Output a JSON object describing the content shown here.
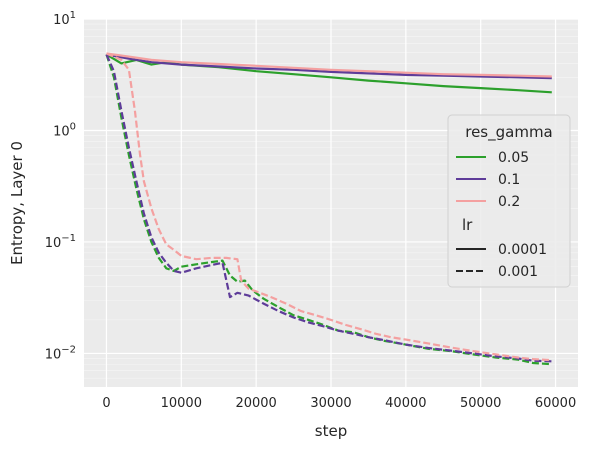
{
  "chart_data": {
    "type": "line",
    "xlabel": "step",
    "ylabel": "Entropy, Layer 0",
    "xlim": [
      -3000,
      63000
    ],
    "ylim": [
      0.005,
      10
    ],
    "y_scale": "log",
    "grid": true,
    "x_ticks": [
      0,
      10000,
      20000,
      30000,
      40000,
      50000,
      60000
    ],
    "x_tick_labels": [
      "0",
      "10000",
      "20000",
      "30000",
      "40000",
      "50000",
      "60000"
    ],
    "y_ticks": [
      0.01,
      0.1,
      1,
      10
    ],
    "y_tick_labels": [
      {
        "base": "10",
        "exp": "−2"
      },
      {
        "base": "10",
        "exp": "−1"
      },
      {
        "base": "10",
        "exp": "0"
      },
      {
        "base": "10",
        "exp": "1"
      }
    ],
    "legend": {
      "position": "center-right",
      "hue_title": "res_gamma",
      "hue_entries": [
        {
          "label": "0.05",
          "color": "#2ca02c"
        },
        {
          "label": "0.1",
          "color": "#5e3c99"
        },
        {
          "label": "0.2",
          "color": "#f4a0a0"
        }
      ],
      "style_title": "lr",
      "style_entries": [
        {
          "label": "0.0001",
          "dash": "solid"
        },
        {
          "label": "0.001",
          "dash": "dashed"
        }
      ]
    },
    "series": [
      {
        "res_gamma": "0.05",
        "lr": "0.0001",
        "color": "#2ca02c",
        "dash": "solid",
        "points": [
          [
            0,
            4.8
          ],
          [
            2000,
            4.0
          ],
          [
            4000,
            4.3
          ],
          [
            6000,
            3.9
          ],
          [
            8000,
            4.1
          ],
          [
            10000,
            3.9
          ],
          [
            15000,
            3.7
          ],
          [
            20000,
            3.4
          ],
          [
            25000,
            3.2
          ],
          [
            30000,
            3.0
          ],
          [
            35000,
            2.8
          ],
          [
            40000,
            2.65
          ],
          [
            45000,
            2.5
          ],
          [
            50000,
            2.4
          ],
          [
            55000,
            2.3
          ],
          [
            59500,
            2.2
          ]
        ]
      },
      {
        "res_gamma": "0.1",
        "lr": "0.0001",
        "color": "#5e3c99",
        "dash": "solid",
        "points": [
          [
            0,
            4.8
          ],
          [
            3000,
            4.4
          ],
          [
            6000,
            4.1
          ],
          [
            10000,
            3.9
          ],
          [
            15000,
            3.75
          ],
          [
            20000,
            3.6
          ],
          [
            25000,
            3.5
          ],
          [
            30000,
            3.35
          ],
          [
            35000,
            3.25
          ],
          [
            40000,
            3.15
          ],
          [
            45000,
            3.1
          ],
          [
            50000,
            3.05
          ],
          [
            55000,
            3.0
          ],
          [
            59500,
            2.95
          ]
        ]
      },
      {
        "res_gamma": "0.2",
        "lr": "0.0001",
        "color": "#f4a0a0",
        "dash": "solid",
        "points": [
          [
            0,
            4.9
          ],
          [
            3000,
            4.6
          ],
          [
            6000,
            4.3
          ],
          [
            10000,
            4.1
          ],
          [
            15000,
            3.95
          ],
          [
            20000,
            3.8
          ],
          [
            25000,
            3.65
          ],
          [
            30000,
            3.5
          ],
          [
            35000,
            3.4
          ],
          [
            40000,
            3.3
          ],
          [
            45000,
            3.2
          ],
          [
            50000,
            3.15
          ],
          [
            55000,
            3.1
          ],
          [
            59500,
            3.05
          ]
        ]
      },
      {
        "res_gamma": "0.05",
        "lr": "0.001",
        "color": "#2ca02c",
        "dash": "dashed",
        "points": [
          [
            0,
            4.8
          ],
          [
            1000,
            3.0
          ],
          [
            2000,
            1.3
          ],
          [
            3000,
            0.6
          ],
          [
            4000,
            0.3
          ],
          [
            5000,
            0.16
          ],
          [
            6000,
            0.1
          ],
          [
            7000,
            0.072
          ],
          [
            8000,
            0.058
          ],
          [
            9000,
            0.055
          ],
          [
            10000,
            0.06
          ],
          [
            12000,
            0.063
          ],
          [
            14000,
            0.066
          ],
          [
            15500,
            0.068
          ],
          [
            16500,
            0.05
          ],
          [
            17500,
            0.044
          ],
          [
            18500,
            0.045
          ],
          [
            19500,
            0.037
          ],
          [
            21000,
            0.031
          ],
          [
            23000,
            0.026
          ],
          [
            25000,
            0.022
          ],
          [
            27000,
            0.02
          ],
          [
            29000,
            0.018
          ],
          [
            31000,
            0.016
          ],
          [
            33000,
            0.0155
          ],
          [
            35000,
            0.014
          ],
          [
            37000,
            0.013
          ],
          [
            40000,
            0.012
          ],
          [
            43000,
            0.011
          ],
          [
            46000,
            0.0105
          ],
          [
            49000,
            0.0098
          ],
          [
            52000,
            0.0092
          ],
          [
            55000,
            0.0088
          ],
          [
            57000,
            0.0082
          ],
          [
            59500,
            0.008
          ]
        ]
      },
      {
        "res_gamma": "0.1",
        "lr": "0.001",
        "color": "#5e3c99",
        "dash": "dashed",
        "points": [
          [
            0,
            4.8
          ],
          [
            1000,
            3.4
          ],
          [
            2000,
            1.5
          ],
          [
            3000,
            0.7
          ],
          [
            4000,
            0.35
          ],
          [
            5000,
            0.18
          ],
          [
            6000,
            0.11
          ],
          [
            7000,
            0.08
          ],
          [
            8000,
            0.065
          ],
          [
            9000,
            0.055
          ],
          [
            10000,
            0.053
          ],
          [
            12000,
            0.058
          ],
          [
            14000,
            0.062
          ],
          [
            15500,
            0.065
          ],
          [
            16500,
            0.032
          ],
          [
            17500,
            0.035
          ],
          [
            19000,
            0.033
          ],
          [
            21000,
            0.028
          ],
          [
            23000,
            0.024
          ],
          [
            25000,
            0.021
          ],
          [
            27000,
            0.019
          ],
          [
            29000,
            0.0175
          ],
          [
            31000,
            0.016
          ],
          [
            33000,
            0.015
          ],
          [
            35000,
            0.014
          ],
          [
            37000,
            0.0132
          ],
          [
            40000,
            0.012
          ],
          [
            43000,
            0.0112
          ],
          [
            46000,
            0.0106
          ],
          [
            49000,
            0.01
          ],
          [
            52000,
            0.0094
          ],
          [
            55000,
            0.009
          ],
          [
            57000,
            0.0086
          ],
          [
            59500,
            0.0085
          ]
        ]
      },
      {
        "res_gamma": "0.2",
        "lr": "0.001",
        "color": "#f4a0a0",
        "dash": "dashed",
        "points": [
          [
            0,
            4.9
          ],
          [
            1000,
            4.6
          ],
          [
            2000,
            4.3
          ],
          [
            3000,
            3.5
          ],
          [
            3800,
            1.5
          ],
          [
            4500,
            0.6
          ],
          [
            5000,
            0.35
          ],
          [
            6000,
            0.2
          ],
          [
            7000,
            0.13
          ],
          [
            8000,
            0.095
          ],
          [
            9000,
            0.085
          ],
          [
            10000,
            0.075
          ],
          [
            12000,
            0.07
          ],
          [
            14000,
            0.072
          ],
          [
            16000,
            0.072
          ],
          [
            17500,
            0.07
          ],
          [
            18000,
            0.045
          ],
          [
            19000,
            0.038
          ],
          [
            20000,
            0.036
          ],
          [
            22000,
            0.032
          ],
          [
            24000,
            0.028
          ],
          [
            26000,
            0.024
          ],
          [
            28000,
            0.022
          ],
          [
            30000,
            0.02
          ],
          [
            32000,
            0.018
          ],
          [
            34000,
            0.0165
          ],
          [
            36000,
            0.015
          ],
          [
            38000,
            0.014
          ],
          [
            40000,
            0.0133
          ],
          [
            43000,
            0.0123
          ],
          [
            46000,
            0.0113
          ],
          [
            49000,
            0.0105
          ],
          [
            52000,
            0.0098
          ],
          [
            55000,
            0.0092
          ],
          [
            57000,
            0.0089
          ],
          [
            59500,
            0.0087
          ]
        ]
      }
    ]
  }
}
